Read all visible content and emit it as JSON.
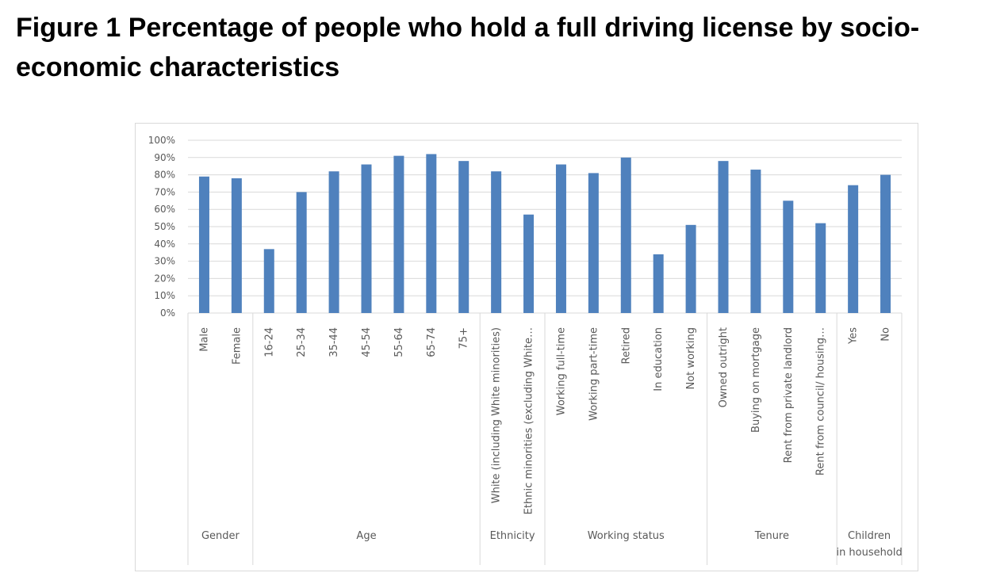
{
  "figure_title": "Figure 1 Percentage of people who hold a full driving license by socio-economic characteristics",
  "colors": {
    "bar": "#4f81bd",
    "grid": "#d9d9d9",
    "text": "#595959",
    "axis": "#bfbfbf"
  },
  "chart_data": {
    "type": "bar",
    "title": "",
    "xlabel": "",
    "ylabel": "",
    "ylim": [
      0,
      100
    ],
    "y_ticks": [
      "0%",
      "10%",
      "20%",
      "30%",
      "40%",
      "50%",
      "60%",
      "70%",
      "80%",
      "90%",
      "100%"
    ],
    "grid": true,
    "legend": "none",
    "categories": [
      "Male",
      "Female",
      "16-24",
      "25-34",
      "35-44",
      "45-54",
      "55-64",
      "65-74",
      "75+",
      "White (including White minorities)",
      "Ethnic minorities (excluding White…",
      "Working full-time",
      "Working part-time",
      "Retired",
      "In education",
      "Not working",
      "Owned outright",
      "Buying on mortgage",
      "Rent from private landlord",
      "Rent from council/ housing…",
      "Yes",
      "No"
    ],
    "values": [
      79,
      78,
      37,
      70,
      82,
      86,
      91,
      92,
      88,
      82,
      57,
      86,
      81,
      90,
      34,
      51,
      88,
      83,
      65,
      52,
      74,
      80
    ],
    "groups": [
      {
        "label": "Gender",
        "count": 2
      },
      {
        "label": "Age",
        "count": 7
      },
      {
        "label": "Ethnicity",
        "count": 2
      },
      {
        "label": "Working status",
        "count": 5
      },
      {
        "label": "Tenure",
        "count": 4
      },
      {
        "label": "Children in household",
        "count": 2
      }
    ]
  }
}
